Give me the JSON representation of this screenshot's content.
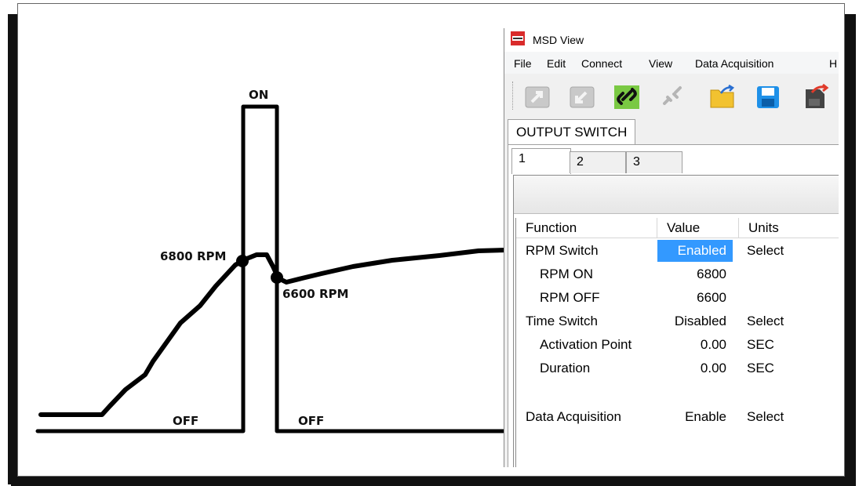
{
  "diagram": {
    "label_on": "ON",
    "label_rpm_on": "6800 RPM",
    "label_rpm_off": "6600 RPM",
    "label_off_left": "OFF",
    "label_off_right": "OFF"
  },
  "window": {
    "title": "MSD View",
    "menu": [
      "File",
      "Edit",
      "Connect",
      "View",
      "Data Acquisition",
      "H"
    ],
    "toolbar": [
      "upload-icon",
      "download-icon",
      "connect-link-icon",
      "disconnect-icon",
      "open-folder-icon",
      "save-disk-icon",
      "sd-card-icon"
    ],
    "main_tab": "OUTPUT SWITCH",
    "sub_tabs": [
      "1",
      "2",
      "3"
    ],
    "columns": [
      "Function",
      "Value",
      "Units"
    ],
    "rows": [
      {
        "function": "RPM Switch",
        "value": "Enabled",
        "units": "Select",
        "indent": 0,
        "selected": true
      },
      {
        "function": "RPM ON",
        "value": "6800",
        "units": "",
        "indent": 1
      },
      {
        "function": "RPM OFF",
        "value": "6600",
        "units": "",
        "indent": 1
      },
      {
        "function": "Time Switch",
        "value": "Disabled",
        "units": "Select",
        "indent": 0
      },
      {
        "function": "Activation Point",
        "value": "0.00",
        "units": "SEC",
        "indent": 2
      },
      {
        "function": "Duration",
        "value": "0.00",
        "units": "SEC",
        "indent": 2
      },
      {
        "function": "",
        "value": "",
        "units": "",
        "indent": 0
      },
      {
        "function": "Data Acquisition",
        "value": "Enable",
        "units": "Select",
        "indent": 0
      }
    ]
  }
}
